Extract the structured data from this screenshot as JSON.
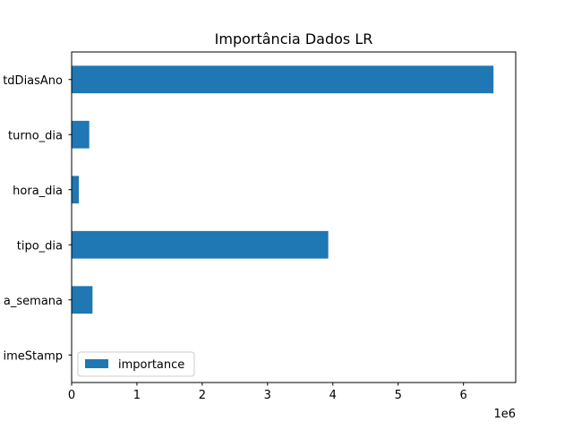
{
  "chart_data": {
    "type": "bar",
    "orientation": "horizontal",
    "title": "Importância Dados LR",
    "xlabel": "",
    "ylabel": "",
    "categories": [
      "timeStamp",
      "dia_semana",
      "tipo_dia",
      "hora_dia",
      "turno_dia",
      "QtdDiasAno"
    ],
    "category_labels_visible": [
      "imeStamp",
      "a_semana",
      "tipo_dia",
      "hora_dia",
      "turno_dia",
      "tdDiasAno"
    ],
    "series": [
      {
        "name": "importance",
        "color": "#1f77b4",
        "values": [
          0,
          320000,
          3930000,
          110000,
          270000,
          6460000
        ]
      }
    ],
    "xlim": [
      0,
      6800000
    ],
    "x_ticks": [
      0,
      1,
      2,
      3,
      4,
      5,
      6
    ],
    "x_scale_label": "1e6",
    "grid": false,
    "legend_position": "lower-left"
  }
}
